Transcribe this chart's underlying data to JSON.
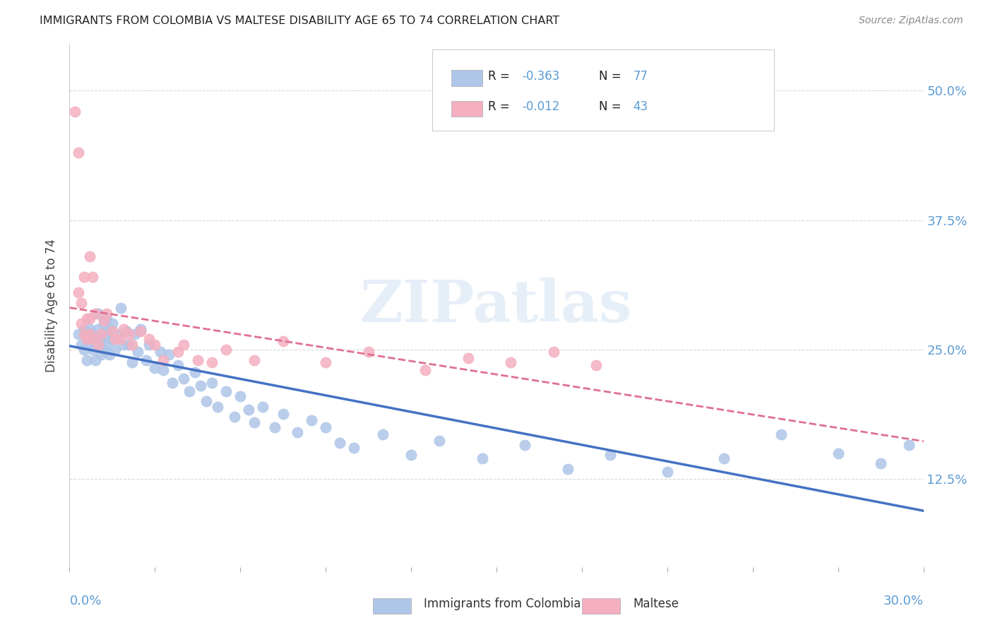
{
  "title": "IMMIGRANTS FROM COLOMBIA VS MALTESE DISABILITY AGE 65 TO 74 CORRELATION CHART",
  "source": "Source: ZipAtlas.com",
  "ylabel": "Disability Age 65 to 74",
  "ytick_labels": [
    "12.5%",
    "25.0%",
    "37.5%",
    "50.0%"
  ],
  "ytick_values": [
    0.125,
    0.25,
    0.375,
    0.5
  ],
  "xlim": [
    0.0,
    0.3
  ],
  "ylim": [
    0.04,
    0.545
  ],
  "watermark": "ZIPatlas",
  "legend_r1": "R = -0.363",
  "legend_n1": "N = 77",
  "legend_r2": "R = -0.012",
  "legend_n2": "N = 43",
  "blue_color": "#aec6e8",
  "pink_color": "#f4afc0",
  "trendline_blue": "#4472c4",
  "trendline_pink": "#e07090",
  "axis_color": "#5b9bd5",
  "grid_color": "#d8d8d8",
  "colombia_x": [
    0.003,
    0.004,
    0.005,
    0.005,
    0.006,
    0.006,
    0.007,
    0.007,
    0.008,
    0.008,
    0.009,
    0.009,
    0.01,
    0.01,
    0.01,
    0.011,
    0.011,
    0.012,
    0.012,
    0.013,
    0.013,
    0.013,
    0.014,
    0.014,
    0.015,
    0.015,
    0.016,
    0.017,
    0.018,
    0.019,
    0.02,
    0.021,
    0.022,
    0.023,
    0.024,
    0.025,
    0.027,
    0.028,
    0.03,
    0.032,
    0.033,
    0.035,
    0.036,
    0.038,
    0.04,
    0.042,
    0.044,
    0.046,
    0.048,
    0.05,
    0.052,
    0.055,
    0.058,
    0.06,
    0.063,
    0.065,
    0.068,
    0.072,
    0.075,
    0.08,
    0.085,
    0.09,
    0.095,
    0.1,
    0.11,
    0.12,
    0.13,
    0.145,
    0.16,
    0.175,
    0.19,
    0.21,
    0.23,
    0.25,
    0.27,
    0.285,
    0.295
  ],
  "colombia_y": [
    0.265,
    0.255,
    0.27,
    0.25,
    0.26,
    0.24,
    0.255,
    0.27,
    0.265,
    0.25,
    0.24,
    0.26,
    0.255,
    0.27,
    0.285,
    0.26,
    0.245,
    0.275,
    0.25,
    0.265,
    0.255,
    0.28,
    0.27,
    0.245,
    0.26,
    0.275,
    0.25,
    0.265,
    0.29,
    0.255,
    0.268,
    0.255,
    0.238,
    0.265,
    0.248,
    0.27,
    0.24,
    0.255,
    0.232,
    0.248,
    0.23,
    0.245,
    0.218,
    0.235,
    0.222,
    0.21,
    0.228,
    0.215,
    0.2,
    0.218,
    0.195,
    0.21,
    0.185,
    0.205,
    0.192,
    0.18,
    0.195,
    0.175,
    0.188,
    0.17,
    0.182,
    0.175,
    0.16,
    0.155,
    0.168,
    0.148,
    0.162,
    0.145,
    0.158,
    0.135,
    0.148,
    0.132,
    0.145,
    0.168,
    0.15,
    0.14,
    0.158
  ],
  "maltese_x": [
    0.002,
    0.003,
    0.003,
    0.004,
    0.004,
    0.005,
    0.005,
    0.006,
    0.006,
    0.007,
    0.007,
    0.007,
    0.008,
    0.008,
    0.009,
    0.01,
    0.011,
    0.012,
    0.013,
    0.015,
    0.016,
    0.018,
    0.019,
    0.021,
    0.022,
    0.025,
    0.028,
    0.03,
    0.033,
    0.038,
    0.04,
    0.045,
    0.05,
    0.055,
    0.065,
    0.075,
    0.09,
    0.105,
    0.125,
    0.14,
    0.155,
    0.17,
    0.185
  ],
  "maltese_y": [
    0.48,
    0.44,
    0.305,
    0.295,
    0.275,
    0.32,
    0.265,
    0.28,
    0.26,
    0.34,
    0.28,
    0.265,
    0.32,
    0.26,
    0.285,
    0.255,
    0.265,
    0.278,
    0.285,
    0.268,
    0.26,
    0.26,
    0.27,
    0.265,
    0.255,
    0.268,
    0.26,
    0.255,
    0.24,
    0.248,
    0.255,
    0.24,
    0.238,
    0.25,
    0.24,
    0.258,
    0.238,
    0.248,
    0.23,
    0.242,
    0.238,
    0.248,
    0.235
  ]
}
